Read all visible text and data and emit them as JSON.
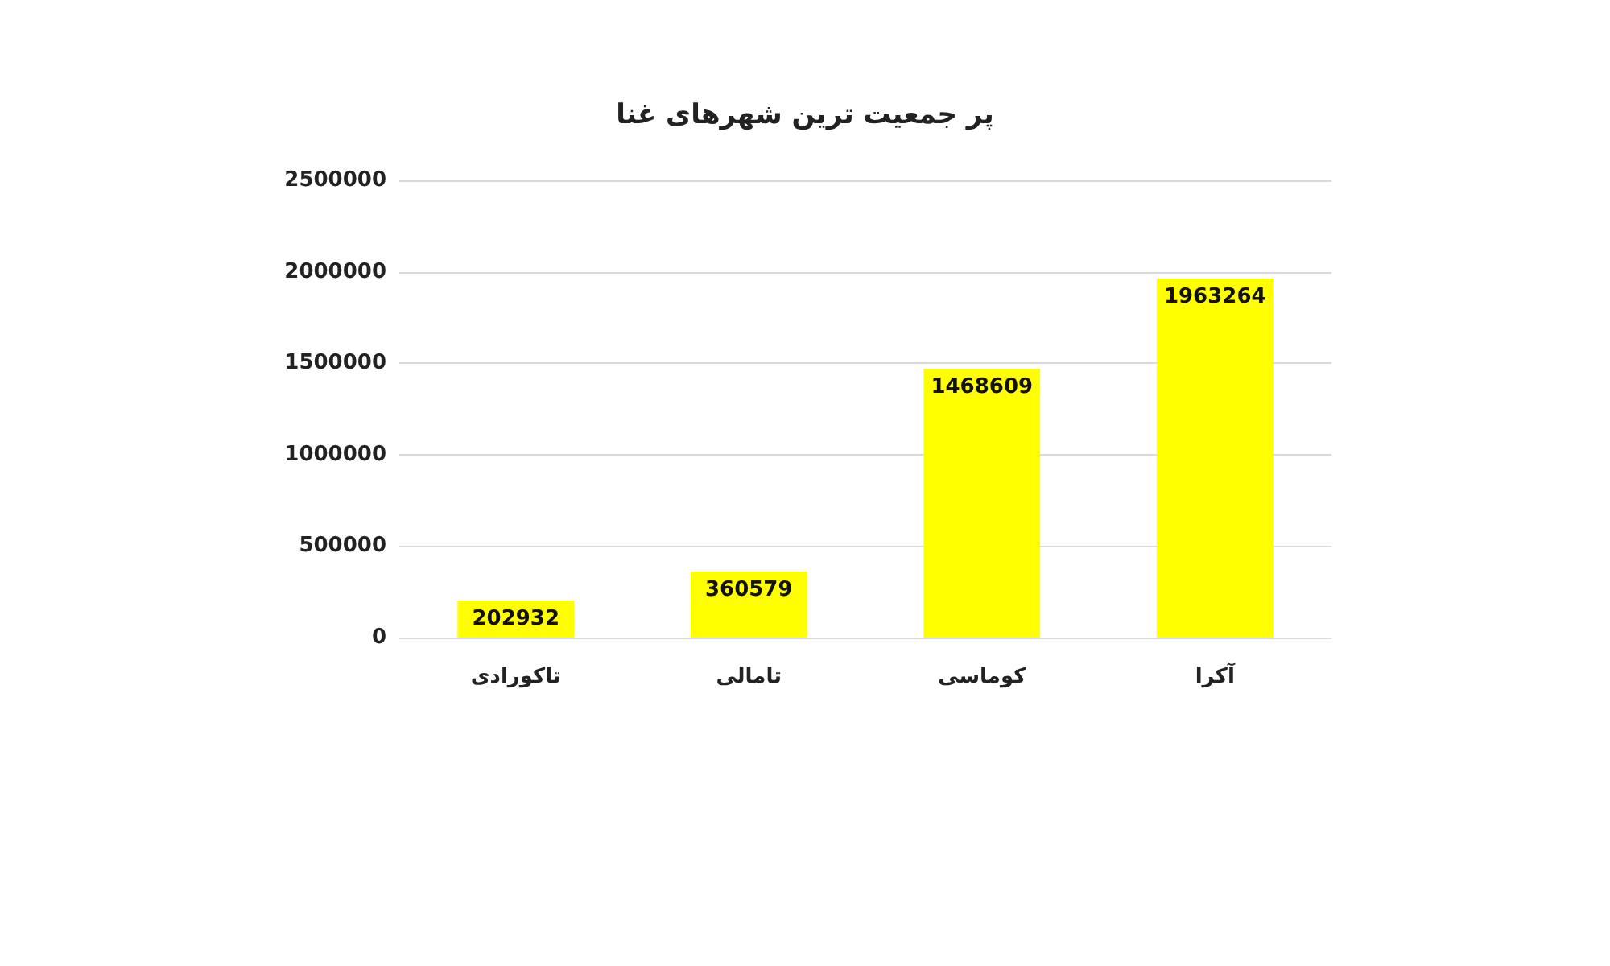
{
  "chart_data": {
    "type": "bar",
    "title": "پر جمعیت ترین شهرهای غنا",
    "categories": [
      "تاکورادی",
      "تامالی",
      "کوماسی",
      "آکرا"
    ],
    "values": [
      202932,
      360579,
      1468609,
      1963264
    ],
    "color": "#ffff00",
    "ylim": [
      0,
      2500000
    ],
    "yticks": [
      0,
      500000,
      1000000,
      1500000,
      2000000,
      2500000
    ],
    "grid": "y",
    "data_labels": true
  }
}
